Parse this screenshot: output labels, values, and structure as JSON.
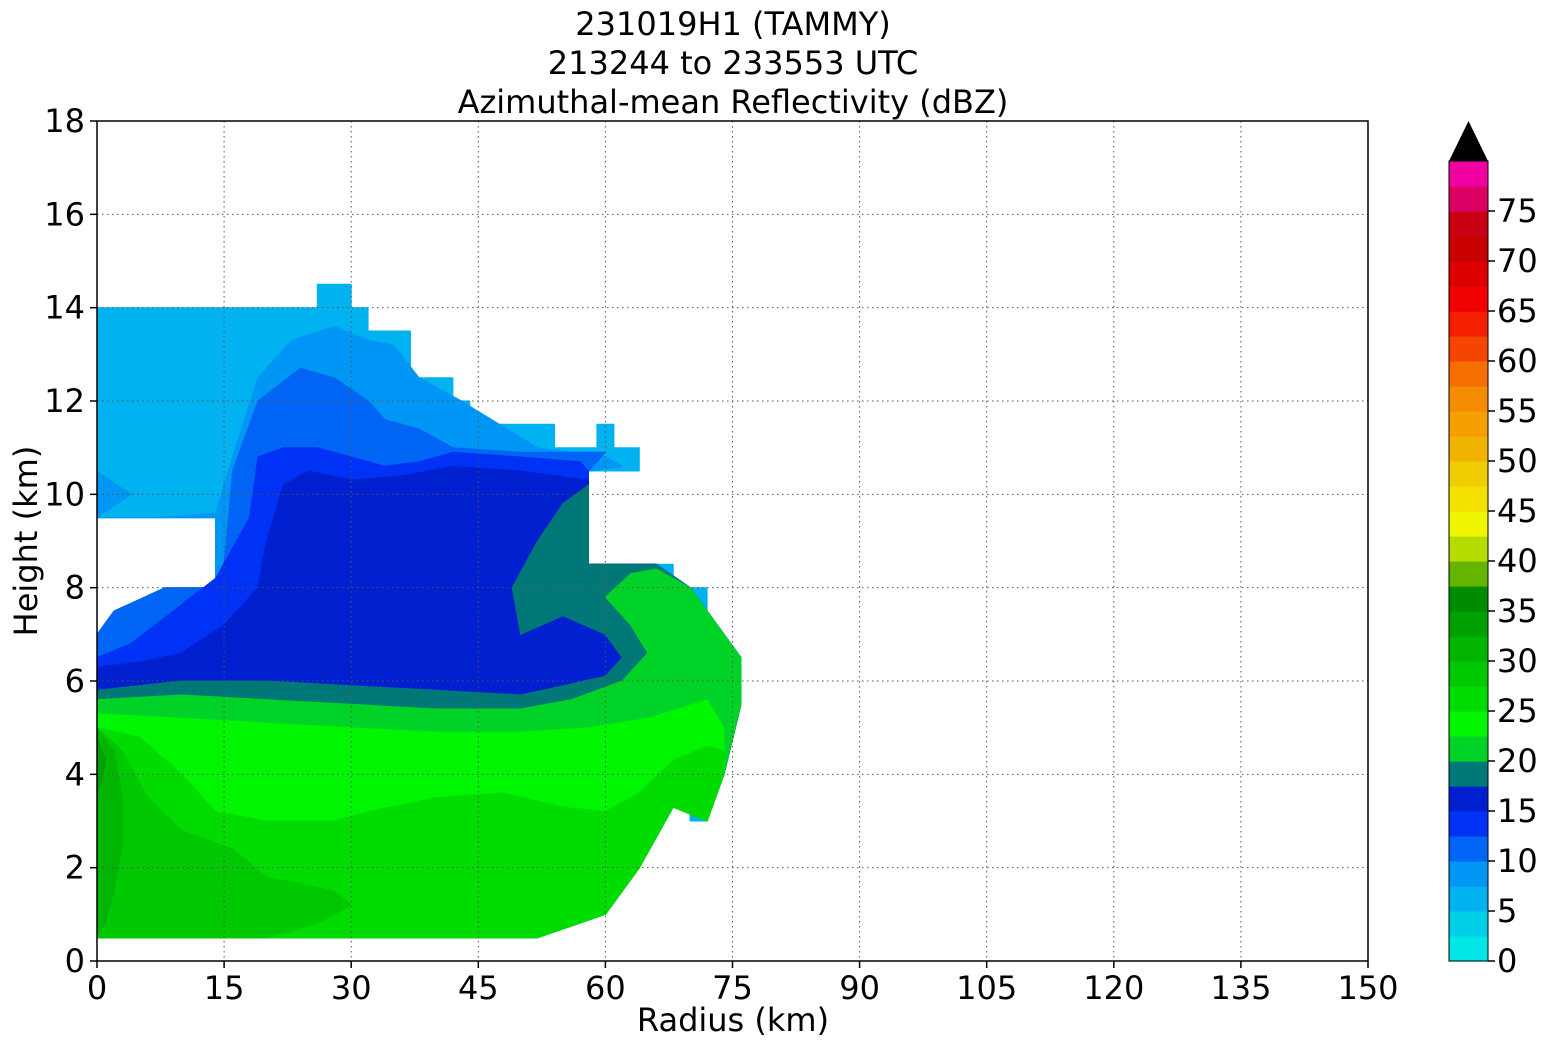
{
  "chart_data": {
    "type": "contour",
    "title_lines": [
      "231019H1 (TAMMY)",
      "213244 to 233553 UTC",
      "Azimuthal-mean Reflectivity (dBZ)"
    ],
    "xlabel": "Radius (km)",
    "ylabel": "Height (km)",
    "xlim": [
      0,
      150
    ],
    "ylim": [
      0,
      18
    ],
    "xticks": [
      0,
      15,
      30,
      45,
      60,
      75,
      90,
      105,
      120,
      135,
      150
    ],
    "yticks": [
      0,
      2,
      4,
      6,
      8,
      10,
      12,
      14,
      16,
      18
    ],
    "grid": true,
    "colorbar": {
      "min": 0,
      "max": 80,
      "step": 2.5,
      "ticks": [
        0,
        5,
        10,
        15,
        20,
        25,
        30,
        35,
        40,
        45,
        50,
        55,
        60,
        65,
        70,
        75
      ],
      "extend": "max",
      "extend_color": "#000000",
      "colors": [
        "#00e5e5",
        "#00cfe8",
        "#00b2f0",
        "#0096f5",
        "#0064f5",
        "#0032f5",
        "#0020d0",
        "#007878",
        "#00d228",
        "#00f500",
        "#00dc00",
        "#00c800",
        "#00b400",
        "#00a000",
        "#008c00",
        "#64b400",
        "#b4dc00",
        "#f0f500",
        "#f5e100",
        "#f0cd00",
        "#f0b400",
        "#f5a000",
        "#f58c00",
        "#f56e00",
        "#f54600",
        "#f51e00",
        "#f00000",
        "#dc0000",
        "#c80000",
        "#c80014",
        "#dc0064",
        "#f000a0",
        "#f000f0",
        "#d232e6",
        "#a050d2",
        "#7846a0",
        "#3c1e50"
      ]
    },
    "levels_dBZ": [
      5,
      7.5,
      10,
      12.5,
      15,
      17.5,
      20,
      22.5,
      25,
      27.5,
      30,
      32.5
    ],
    "regions": [
      {
        "level": 5,
        "shape": "echo extent",
        "points": [
          [
            0,
            14
          ],
          [
            26,
            14
          ],
          [
            26,
            14.5
          ],
          [
            30,
            14.5
          ],
          [
            30,
            14
          ],
          [
            32,
            14
          ],
          [
            32,
            13.5
          ],
          [
            37,
            13.5
          ],
          [
            37,
            12.5
          ],
          [
            42,
            12.5
          ],
          [
            42,
            12
          ],
          [
            44,
            12
          ],
          [
            44,
            11.5
          ],
          [
            54,
            11.5
          ],
          [
            54,
            11
          ],
          [
            59,
            11
          ],
          [
            59,
            11.5
          ],
          [
            61,
            11.5
          ],
          [
            61,
            11
          ],
          [
            64,
            11
          ],
          [
            64,
            10.5
          ],
          [
            58,
            10.5
          ],
          [
            58,
            8.5
          ],
          [
            68,
            8.5
          ],
          [
            68,
            8
          ],
          [
            72,
            8
          ],
          [
            72,
            7
          ],
          [
            74,
            7
          ],
          [
            74,
            6.5
          ],
          [
            76,
            6.5
          ],
          [
            76,
            5.5
          ],
          [
            74,
            5.5
          ],
          [
            74,
            4.5
          ],
          [
            72,
            4.5
          ],
          [
            72,
            3
          ],
          [
            70,
            3
          ],
          [
            70,
            3.5
          ],
          [
            66,
            3.5
          ],
          [
            66,
            3
          ],
          [
            64,
            3
          ],
          [
            64,
            2
          ],
          [
            60,
            2
          ],
          [
            60,
            1
          ],
          [
            52,
            1
          ],
          [
            52,
            0.5
          ],
          [
            0,
            0.5
          ],
          [
            0,
            7
          ],
          [
            2,
            7
          ],
          [
            2,
            7.5
          ],
          [
            8,
            7.5
          ],
          [
            8,
            8
          ],
          [
            14,
            8
          ],
          [
            14,
            9.5
          ],
          [
            0,
            9.5
          ]
        ]
      },
      {
        "level": 7.5,
        "shape": "contour",
        "points": [
          [
            0,
            9.5
          ],
          [
            7,
            9.5
          ],
          [
            14,
            9.6
          ],
          [
            16,
            10.8
          ],
          [
            19,
            12.5
          ],
          [
            23,
            13.3
          ],
          [
            28,
            13.6
          ],
          [
            32,
            13.3
          ],
          [
            35,
            13.2
          ],
          [
            38,
            12.5
          ],
          [
            43,
            12
          ],
          [
            52,
            11
          ],
          [
            60,
            10.8
          ],
          [
            62,
            10.6
          ],
          [
            58,
            10.5
          ],
          [
            58,
            8.5
          ],
          [
            66,
            8.5
          ],
          [
            70,
            8
          ],
          [
            74,
            7
          ],
          [
            76,
            6.5
          ],
          [
            76,
            5.5
          ],
          [
            74,
            4
          ],
          [
            72,
            3
          ],
          [
            68,
            3.3
          ],
          [
            64,
            2
          ],
          [
            60,
            1
          ],
          [
            52,
            0.5
          ],
          [
            0,
            0.5
          ],
          [
            0,
            7
          ],
          [
            2,
            7
          ],
          [
            2,
            7.5
          ],
          [
            8,
            7.5
          ],
          [
            8,
            8
          ],
          [
            14,
            8
          ],
          [
            14,
            9.5
          ],
          [
            0,
            9.5
          ],
          [
            0,
            10.5
          ],
          [
            4,
            10
          ]
        ]
      },
      {
        "level": 10,
        "shape": "contour",
        "points": [
          [
            0,
            7
          ],
          [
            2,
            7.5
          ],
          [
            8,
            8
          ],
          [
            14,
            8
          ],
          [
            15,
            8.5
          ],
          [
            16,
            10.5
          ],
          [
            19,
            12
          ],
          [
            24,
            12.7
          ],
          [
            28,
            12.5
          ],
          [
            32,
            12
          ],
          [
            34,
            11.6
          ],
          [
            38,
            11.4
          ],
          [
            42,
            11
          ],
          [
            50,
            10.9
          ],
          [
            60,
            10.9
          ],
          [
            58,
            10.5
          ],
          [
            58,
            8.5
          ],
          [
            66,
            8.5
          ],
          [
            70,
            8
          ],
          [
            74,
            7
          ],
          [
            76,
            6.5
          ],
          [
            76,
            5.5
          ],
          [
            74,
            4
          ],
          [
            72,
            3
          ],
          [
            68,
            3.3
          ],
          [
            64,
            2
          ],
          [
            60,
            1
          ],
          [
            52,
            0.5
          ],
          [
            0,
            0.5
          ]
        ]
      },
      {
        "level": 12.5,
        "shape": "contour",
        "points": [
          [
            0,
            6.5
          ],
          [
            4,
            6.8
          ],
          [
            9,
            7.5
          ],
          [
            14,
            8.2
          ],
          [
            18,
            9.5
          ],
          [
            19,
            10.8
          ],
          [
            22,
            11
          ],
          [
            26,
            11
          ],
          [
            30,
            10.8
          ],
          [
            34,
            10.6
          ],
          [
            38,
            10.7
          ],
          [
            42,
            10.9
          ],
          [
            50,
            10.8
          ],
          [
            57,
            10.7
          ],
          [
            58,
            10.5
          ],
          [
            58,
            8.5
          ],
          [
            66,
            8.5
          ],
          [
            70,
            8
          ],
          [
            74,
            7
          ],
          [
            76,
            6.5
          ],
          [
            76,
            5.5
          ],
          [
            74,
            4
          ],
          [
            72,
            3
          ],
          [
            68,
            3.3
          ],
          [
            64,
            2
          ],
          [
            60,
            1
          ],
          [
            52,
            0.5
          ],
          [
            0,
            0.5
          ]
        ]
      },
      {
        "level": 15,
        "shape": "contour",
        "points": [
          [
            0,
            6.3
          ],
          [
            5,
            6.4
          ],
          [
            10,
            6.6
          ],
          [
            15,
            7.2
          ],
          [
            19,
            8
          ],
          [
            20,
            9
          ],
          [
            22,
            10.2
          ],
          [
            25,
            10.5
          ],
          [
            30,
            10.3
          ],
          [
            36,
            10.4
          ],
          [
            42,
            10.6
          ],
          [
            50,
            10.5
          ],
          [
            58,
            10.3
          ],
          [
            58,
            8.5
          ],
          [
            66,
            8.5
          ],
          [
            70,
            8
          ],
          [
            74,
            7
          ],
          [
            76,
            6.5
          ],
          [
            76,
            5.5
          ],
          [
            74,
            4
          ],
          [
            72,
            3
          ],
          [
            68,
            3.3
          ],
          [
            64,
            2
          ],
          [
            60,
            1
          ],
          [
            52,
            0.5
          ],
          [
            0,
            0.5
          ]
        ]
      },
      {
        "level": 17.5,
        "shape": "contour",
        "points": [
          [
            0,
            5.8
          ],
          [
            10,
            6
          ],
          [
            20,
            6
          ],
          [
            30,
            5.9
          ],
          [
            40,
            5.8
          ],
          [
            50,
            5.7
          ],
          [
            55,
            5.9
          ],
          [
            60,
            6.1
          ],
          [
            62,
            6.5
          ],
          [
            60,
            7
          ],
          [
            55,
            7.4
          ],
          [
            50,
            7
          ],
          [
            49,
            8
          ],
          [
            52,
            9
          ],
          [
            55,
            9.8
          ],
          [
            58,
            10.2
          ],
          [
            58,
            8.5
          ],
          [
            66,
            8.5
          ],
          [
            70,
            8
          ],
          [
            74,
            7
          ],
          [
            76,
            6.5
          ],
          [
            76,
            5.5
          ],
          [
            74,
            4
          ],
          [
            72,
            3
          ],
          [
            68,
            3.3
          ],
          [
            64,
            2
          ],
          [
            60,
            1
          ],
          [
            52,
            0.5
          ],
          [
            0,
            0.5
          ]
        ]
      },
      {
        "level": 20,
        "shape": "contour",
        "points": [
          [
            0,
            5.6
          ],
          [
            10,
            5.7
          ],
          [
            20,
            5.6
          ],
          [
            30,
            5.5
          ],
          [
            40,
            5.4
          ],
          [
            50,
            5.4
          ],
          [
            56,
            5.6
          ],
          [
            62,
            6
          ],
          [
            65,
            6.6
          ],
          [
            63,
            7.2
          ],
          [
            60,
            7.8
          ],
          [
            63,
            8.3
          ],
          [
            66,
            8.4
          ],
          [
            70,
            8
          ],
          [
            74,
            7
          ],
          [
            76,
            6.5
          ],
          [
            76,
            5.5
          ],
          [
            74,
            4
          ],
          [
            72,
            3
          ],
          [
            68,
            3.3
          ],
          [
            64,
            2
          ],
          [
            60,
            1
          ],
          [
            52,
            0.5
          ],
          [
            0,
            0.5
          ]
        ]
      },
      {
        "level": 22.5,
        "shape": "contour",
        "points": [
          [
            0,
            5.3
          ],
          [
            10,
            5.2
          ],
          [
            20,
            5.1
          ],
          [
            30,
            5
          ],
          [
            40,
            4.9
          ],
          [
            50,
            4.9
          ],
          [
            58,
            5
          ],
          [
            65,
            5.2
          ],
          [
            72,
            5.6
          ],
          [
            74,
            5
          ],
          [
            74,
            4
          ],
          [
            72,
            3
          ],
          [
            68,
            3.3
          ],
          [
            64,
            2
          ],
          [
            60,
            1
          ],
          [
            52,
            0.5
          ],
          [
            0,
            0.5
          ]
        ]
      },
      {
        "level": 25,
        "shape": "contour",
        "points": [
          [
            0,
            5
          ],
          [
            5,
            4.8
          ],
          [
            10,
            4
          ],
          [
            14,
            3.2
          ],
          [
            20,
            3
          ],
          [
            28,
            3
          ],
          [
            32,
            3.2
          ],
          [
            40,
            3.5
          ],
          [
            48,
            3.6
          ],
          [
            55,
            3.3
          ],
          [
            60,
            3.2
          ],
          [
            64,
            3.6
          ],
          [
            68,
            4.3
          ],
          [
            72,
            4.6
          ],
          [
            74,
            4.5
          ],
          [
            74,
            4
          ],
          [
            72,
            3
          ],
          [
            68,
            3.3
          ],
          [
            64,
            2
          ],
          [
            60,
            1
          ],
          [
            52,
            0.5
          ],
          [
            0,
            0.5
          ]
        ]
      },
      {
        "level": 27.5,
        "shape": "contour",
        "points": [
          [
            0,
            5
          ],
          [
            3,
            4.5
          ],
          [
            6,
            3.5
          ],
          [
            10,
            2.8
          ],
          [
            16,
            2.4
          ],
          [
            20,
            1.8
          ],
          [
            28,
            1.5
          ],
          [
            30,
            1.2
          ],
          [
            26,
            0.8
          ],
          [
            20,
            0.5
          ],
          [
            0,
            0.5
          ]
        ]
      },
      {
        "level": 30,
        "shape": "contour",
        "points": [
          [
            0,
            5
          ],
          [
            2,
            4.5
          ],
          [
            3,
            3.5
          ],
          [
            3,
            2.5
          ],
          [
            2,
            1.5
          ],
          [
            1,
            0.8
          ],
          [
            0,
            0.6
          ]
        ]
      },
      {
        "level": 32.5,
        "shape": "contour",
        "points": [
          [
            0,
            4.8
          ],
          [
            1,
            4.3
          ],
          [
            0.5,
            3.8
          ],
          [
            0,
            3.5
          ]
        ]
      }
    ]
  }
}
